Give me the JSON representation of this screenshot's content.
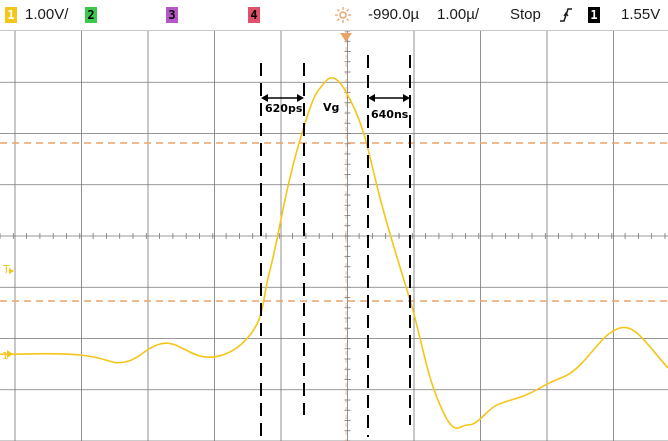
{
  "status_bar": {
    "ch1_label": "1",
    "ch1_scale": "1.00V/",
    "ch2_label": "2",
    "ch3_label": "3",
    "ch4_label": "4",
    "trigger_pos_icon": "sun-icon",
    "time_delay": "-990.0µ",
    "time_scale": "1.00µ/",
    "run_state": "Stop",
    "trigger_edge_icon": "rising-edge-icon",
    "trigger_channel": "1",
    "trigger_level": "1.55V"
  },
  "colors": {
    "ch1": "#f5c518",
    "ch2": "#3cc84a",
    "ch3": "#b455c8",
    "ch4": "#e0506a",
    "cursor": "#e9a46a",
    "grid": "#777777",
    "marker": "#000000"
  },
  "annotations": {
    "rise_time": "620ps",
    "peak": "Vg",
    "fall_time": "640ns"
  },
  "channel_markers": {
    "trigger_marker": "T",
    "ch1_ground": "1"
  }
}
